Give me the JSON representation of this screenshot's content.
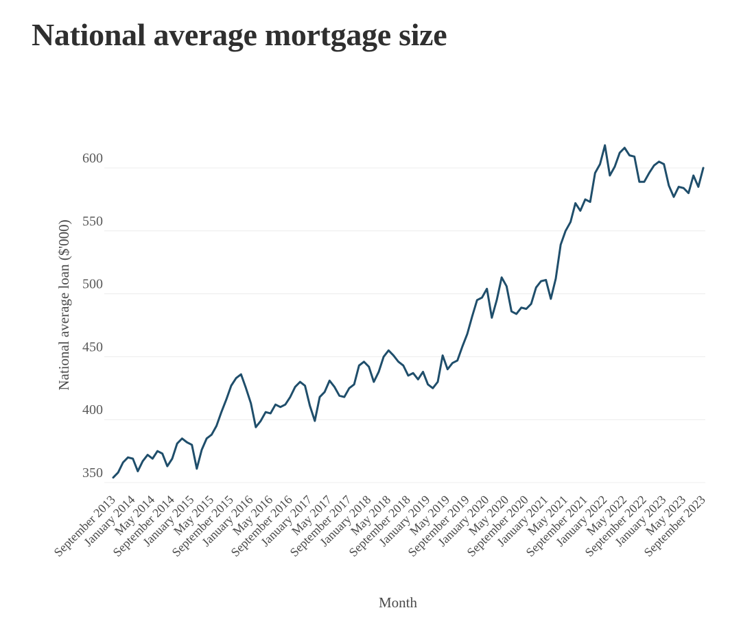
{
  "chart_data": {
    "type": "line",
    "title": "National average mortgage size",
    "xlabel": "Month",
    "ylabel": "National average loan ($'000)",
    "ylim": [
      345,
      625
    ],
    "yticks": [
      350,
      400,
      450,
      500,
      550,
      600
    ],
    "grid": "horizontal",
    "line_color": "#1f4e6b",
    "x_tick_labels": [
      "September 2013",
      "January 2014",
      "May 2014",
      "September 2014",
      "January 2015",
      "May 2015",
      "September 2015",
      "January 2016",
      "May 2016",
      "September 2016",
      "January 2017",
      "May 2017",
      "September 2017",
      "January 2018",
      "May 2018",
      "September 2018",
      "January 2019",
      "May 2019",
      "September 2019",
      "January 2020",
      "May 2020",
      "September 2020",
      "January 2021",
      "May 2021",
      "September 2021",
      "January 2022",
      "May 2022",
      "September 2022",
      "January 2023",
      "May 2023",
      "September 2023"
    ],
    "series": [
      {
        "values": [
          354,
          358,
          366,
          370,
          369,
          359,
          367,
          372,
          369,
          375,
          373,
          363,
          369,
          381,
          385,
          382,
          380,
          361,
          376,
          385,
          388,
          395,
          406,
          416,
          427,
          433,
          436,
          425,
          413,
          394,
          399,
          406,
          405,
          412,
          410,
          412,
          418,
          426,
          430,
          427,
          411,
          399,
          418,
          422,
          431,
          426,
          419,
          418,
          425,
          428,
          443,
          446,
          442,
          430,
          438,
          450,
          455,
          451,
          446,
          443,
          435,
          437,
          432,
          438,
          428,
          425,
          430,
          451,
          440,
          445,
          447,
          458,
          468,
          482,
          495,
          497,
          504,
          481,
          495,
          513,
          506,
          486,
          484,
          489,
          488,
          492,
          505,
          510,
          511,
          496,
          512,
          539,
          550,
          557,
          572,
          566,
          575,
          573,
          596,
          603,
          618,
          594,
          601,
          612,
          616,
          610,
          609,
          589,
          589,
          596,
          602,
          605,
          603,
          586,
          577,
          585,
          584,
          580,
          594,
          585,
          600
        ]
      }
    ]
  }
}
